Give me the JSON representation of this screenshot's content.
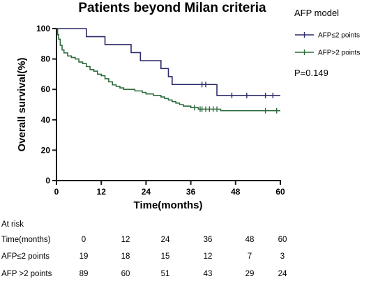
{
  "chart_data": {
    "type": "line",
    "title": "Patients beyond Milan criteria",
    "xlabel": "Time(months)",
    "ylabel": "Overall survival(%)",
    "xlim": [
      0,
      60
    ],
    "ylim": [
      0,
      100
    ],
    "xticks": [
      "0",
      "12",
      "24",
      "36",
      "48",
      "60"
    ],
    "yticks": [
      "0",
      "20",
      "40",
      "60",
      "80",
      "100"
    ],
    "grid": false,
    "legend": {
      "title": "AFP model",
      "position": "top-right",
      "entries": [
        "AFP≤2 points",
        "AFP>2 points"
      ]
    },
    "annotation": "P=0.149",
    "series": [
      {
        "name": "AFP≤2 points",
        "color": "#2b2a6b",
        "steps": [
          [
            0,
            100
          ],
          [
            8,
            94.7
          ],
          [
            13,
            89.5
          ],
          [
            20,
            84.2
          ],
          [
            22.5,
            78.9
          ],
          [
            28,
            73.7
          ],
          [
            30,
            68.4
          ],
          [
            31,
            63.2
          ],
          [
            35,
            63.2
          ],
          [
            43,
            56
          ],
          [
            60,
            56
          ]
        ],
        "censored": [
          [
            39,
            63.2
          ],
          [
            40,
            63.2
          ],
          [
            47,
            56
          ],
          [
            51,
            56
          ],
          [
            56,
            56
          ],
          [
            58,
            56
          ]
        ]
      },
      {
        "name": "AFP>2 points",
        "color": "#2c6b3c",
        "steps": [
          [
            0,
            100
          ],
          [
            0.3,
            96
          ],
          [
            0.6,
            93
          ],
          [
            1,
            89
          ],
          [
            1.5,
            86
          ],
          [
            2,
            84
          ],
          [
            3,
            82
          ],
          [
            4,
            81
          ],
          [
            5,
            80
          ],
          [
            6,
            78
          ],
          [
            7,
            77
          ],
          [
            8,
            75
          ],
          [
            9,
            73
          ],
          [
            10,
            72
          ],
          [
            11,
            70
          ],
          [
            12,
            69
          ],
          [
            13,
            67
          ],
          [
            14,
            65
          ],
          [
            15,
            63
          ],
          [
            16,
            62
          ],
          [
            17,
            61
          ],
          [
            18,
            60
          ],
          [
            21,
            59
          ],
          [
            23,
            58
          ],
          [
            24,
            57
          ],
          [
            26,
            56
          ],
          [
            28,
            55
          ],
          [
            29,
            54
          ],
          [
            30,
            53
          ],
          [
            31,
            52
          ],
          [
            32,
            51
          ],
          [
            33,
            50
          ],
          [
            34,
            49
          ],
          [
            36,
            48
          ],
          [
            38,
            47
          ],
          [
            44,
            46
          ],
          [
            60,
            46
          ]
        ],
        "censored": [
          [
            37,
            48
          ],
          [
            38.5,
            47
          ],
          [
            39,
            47
          ],
          [
            40,
            47
          ],
          [
            41,
            47
          ],
          [
            42,
            47
          ],
          [
            43,
            47
          ],
          [
            56,
            46
          ],
          [
            59,
            46
          ]
        ]
      }
    ],
    "risk_table": {
      "title": "At risk",
      "rows": [
        {
          "label": "Time(months)",
          "values": [
            "0",
            "12",
            "24",
            "36",
            "48",
            "60"
          ]
        },
        {
          "label": "AFP≤2 points",
          "values": [
            "19",
            "18",
            "15",
            "12",
            "7",
            "3"
          ]
        },
        {
          "label": "AFP >2 points",
          "values": [
            "89",
            "60",
            "51",
            "43",
            "29",
            "24"
          ]
        }
      ]
    }
  }
}
